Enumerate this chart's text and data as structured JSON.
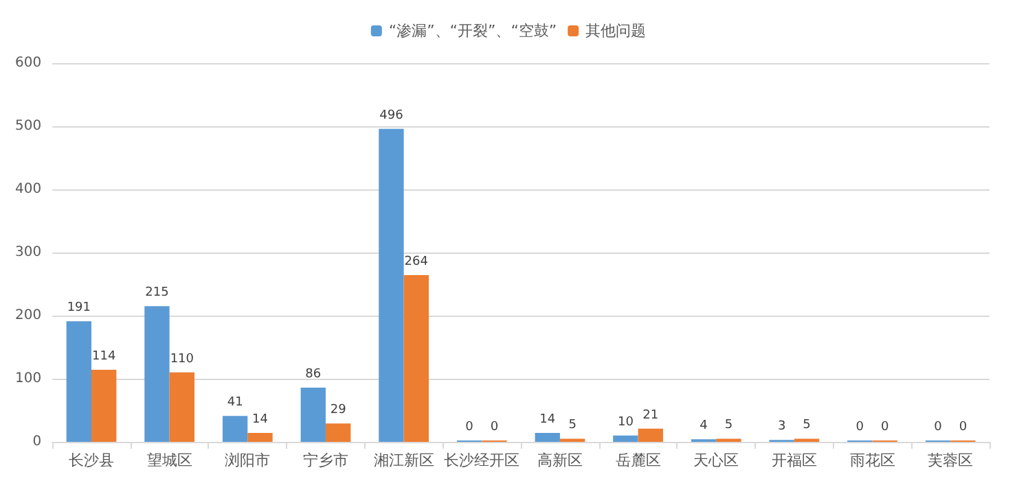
{
  "chart_data": {
    "type": "bar",
    "categories": [
      "长沙县",
      "望城区",
      "浏阳市",
      "宁乡市",
      "湘江新区",
      "长沙经开区",
      "高新区",
      "岳麓区",
      "天心区",
      "开福区",
      "雨花区",
      "芙蓉区"
    ],
    "series": [
      {
        "name": "“渗漏”、“开裂”、“空鼓”",
        "color": "#5b9bd5",
        "values": [
          191,
          215,
          41,
          86,
          496,
          0,
          14,
          10,
          4,
          3,
          0,
          0
        ]
      },
      {
        "name": "其他问题",
        "color": "#ed7d31",
        "values": [
          114,
          110,
          14,
          29,
          264,
          0,
          5,
          21,
          5,
          5,
          0,
          0
        ]
      }
    ],
    "ylim": [
      0,
      600
    ],
    "yticks": [
      0,
      100,
      200,
      300,
      400,
      500,
      600
    ],
    "grid": "y",
    "legend": "top",
    "data_labels": true
  }
}
